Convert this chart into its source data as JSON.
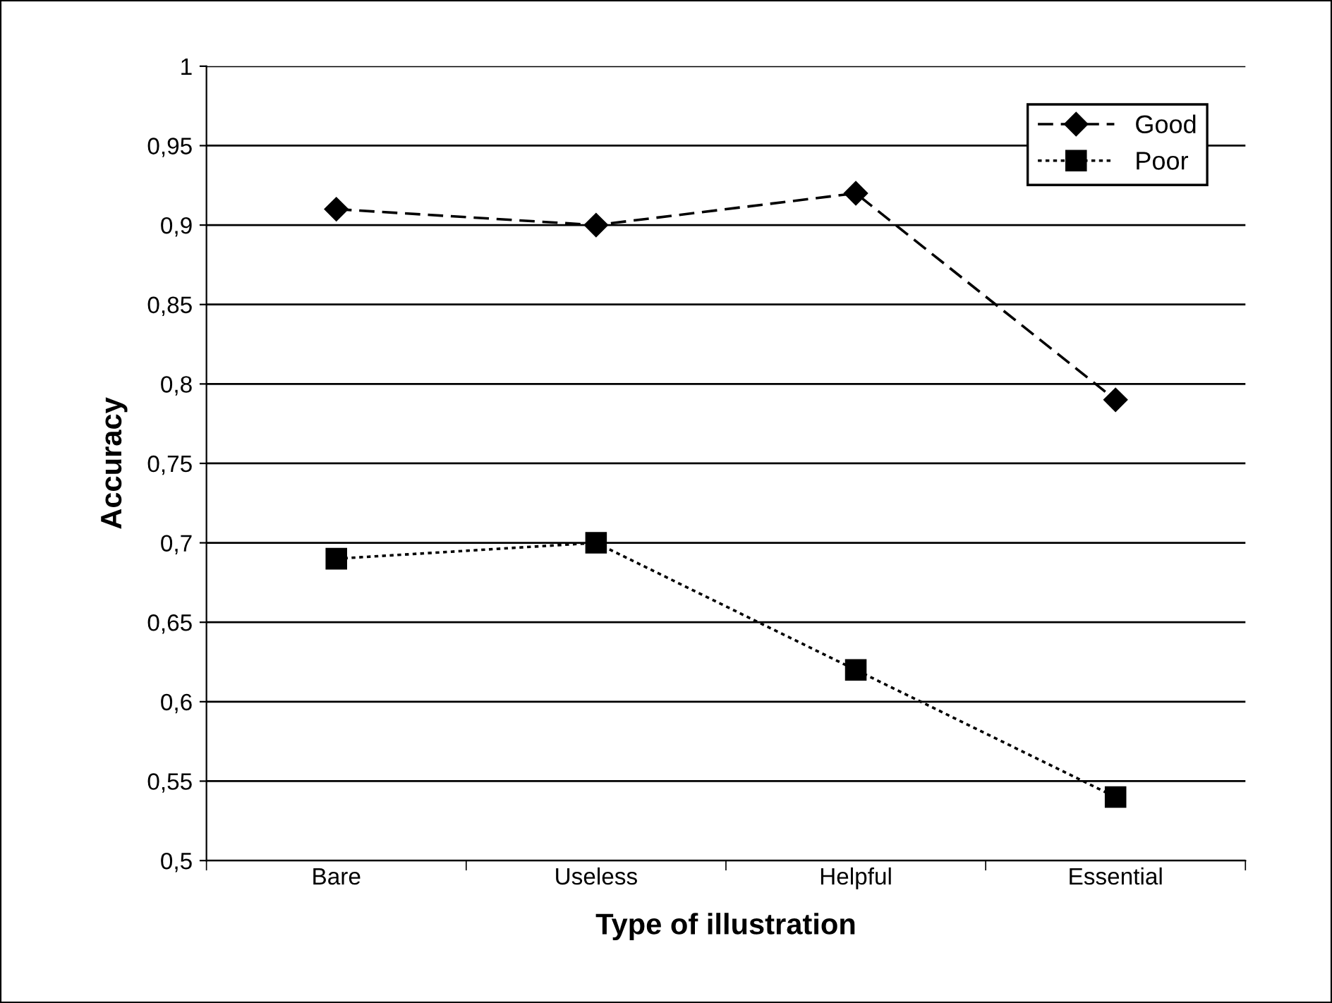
{
  "chart_data": {
    "type": "line",
    "xlabel": "Type of illustration",
    "ylabel": "Accuracy",
    "categories": [
      "Bare",
      "Useless",
      "Helpful",
      "Essential"
    ],
    "series": [
      {
        "name": "Good",
        "color": "#000000",
        "values": [
          0.91,
          0.9,
          0.92,
          0.79
        ],
        "marker": "diamond",
        "line_style": "dashed"
      },
      {
        "name": "Poor",
        "color": "#000000",
        "values": [
          0.69,
          0.7,
          0.62,
          0.54
        ],
        "marker": "square",
        "line_style": "dotted"
      }
    ],
    "ylim": [
      0.5,
      1
    ],
    "yticks": [
      {
        "value": 0.5,
        "label": "0,5"
      },
      {
        "value": 0.55,
        "label": "0,55"
      },
      {
        "value": 0.6,
        "label": "0,6"
      },
      {
        "value": 0.65,
        "label": "0,65"
      },
      {
        "value": 0.7,
        "label": "0,7"
      },
      {
        "value": 0.75,
        "label": "0,75"
      },
      {
        "value": 0.8,
        "label": "0,8"
      },
      {
        "value": 0.85,
        "label": "0,85"
      },
      {
        "value": 0.9,
        "label": "0,9"
      },
      {
        "value": 0.95,
        "label": "0,95"
      },
      {
        "value": 1,
        "label": "1"
      }
    ],
    "grid": "y",
    "legend": "top right"
  }
}
